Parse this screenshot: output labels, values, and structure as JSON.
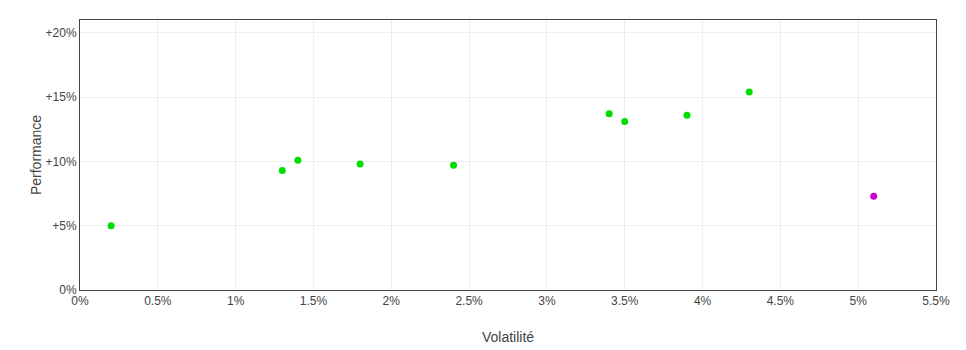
{
  "chart_data": {
    "type": "scatter",
    "xlabel": "Volatilité",
    "ylabel": "Performance",
    "xlim": [
      0.0,
      0.055
    ],
    "ylim": [
      0.0,
      0.21
    ],
    "xticks": [
      {
        "value": 0.0,
        "label": "0%"
      },
      {
        "value": 0.005,
        "label": "0.5%"
      },
      {
        "value": 0.01,
        "label": "1%"
      },
      {
        "value": 0.015,
        "label": "1.5%"
      },
      {
        "value": 0.02,
        "label": "2%"
      },
      {
        "value": 0.025,
        "label": "2.5%"
      },
      {
        "value": 0.03,
        "label": "3%"
      },
      {
        "value": 0.035,
        "label": "3.5%"
      },
      {
        "value": 0.04,
        "label": "4%"
      },
      {
        "value": 0.045,
        "label": "4.5%"
      },
      {
        "value": 0.05,
        "label": "5%"
      },
      {
        "value": 0.055,
        "label": "5.5%"
      }
    ],
    "yticks": [
      {
        "value": 0.0,
        "label": "0%"
      },
      {
        "value": 0.05,
        "label": "+5%"
      },
      {
        "value": 0.1,
        "label": "+10%"
      },
      {
        "value": 0.15,
        "label": "+15%"
      },
      {
        "value": 0.2,
        "label": "+20%"
      }
    ],
    "grid": true,
    "series": [
      {
        "color": "#00dd00",
        "x": [
          0.002,
          0.013,
          0.014,
          0.018,
          0.024,
          0.034,
          0.035,
          0.039,
          0.043
        ],
        "values": [
          0.05,
          0.093,
          0.101,
          0.098,
          0.097,
          0.137,
          0.131,
          0.136,
          0.154
        ]
      },
      {
        "color": "#cc00cc",
        "x": [
          0.051
        ],
        "values": [
          0.073
        ]
      }
    ]
  }
}
